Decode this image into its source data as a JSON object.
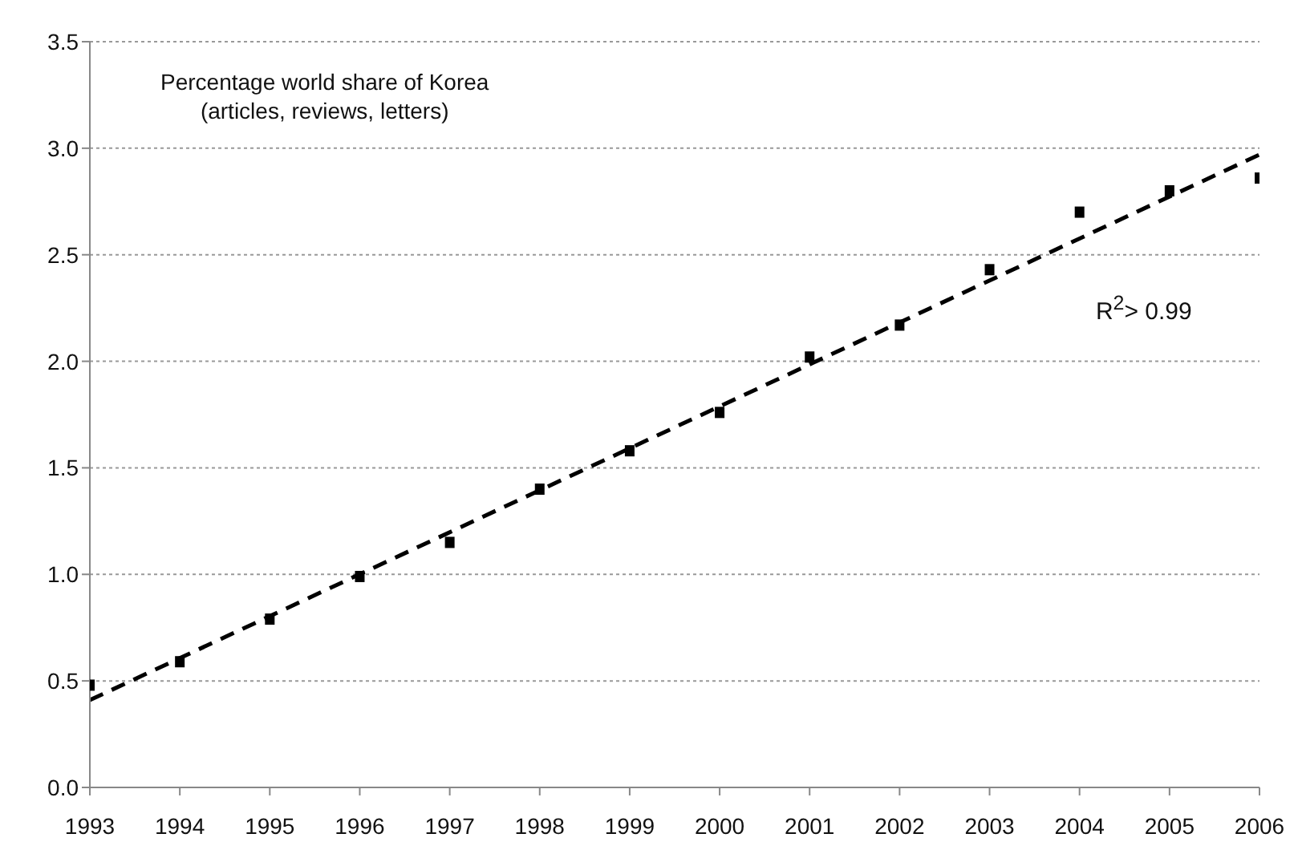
{
  "chart_data": {
    "type": "scatter",
    "title": "Percentage world share of Korea\n(articles, reviews, letters)",
    "x": [
      1993,
      1994,
      1995,
      1996,
      1997,
      1998,
      1999,
      2000,
      2001,
      2002,
      2003,
      2004,
      2005,
      2006
    ],
    "series": [
      {
        "color": "#000000",
        "marker": "square",
        "values": [
          0.48,
          0.59,
          0.79,
          0.99,
          1.15,
          1.4,
          1.58,
          1.76,
          2.02,
          2.17,
          2.43,
          2.7,
          2.8,
          2.86
        ]
      },
      {
        "type": "line",
        "color": "#000000",
        "line_style": "dashed",
        "marker": "none",
        "x": [
          1993,
          2006
        ],
        "values": [
          0.41,
          2.97
        ]
      }
    ],
    "annotations": [
      "R$^{2}$> 0.99"
    ],
    "xlim": [
      1993,
      2006
    ],
    "xticks": [
      1993,
      1994,
      1995,
      1996,
      1997,
      1998,
      1999,
      2000,
      2001,
      2002,
      2003,
      2004,
      2005,
      2006
    ],
    "ylim": [
      0,
      3.5
    ],
    "yticks": [
      {
        "value": 0,
        "label": "0.0"
      },
      0.5,
      {
        "value": 1,
        "label": "1.0"
      },
      1.5,
      {
        "value": 2,
        "label": "2.0"
      },
      2.5,
      {
        "value": 3,
        "label": "3.0"
      },
      3.5
    ],
    "grid": "y",
    "legend": false
  }
}
